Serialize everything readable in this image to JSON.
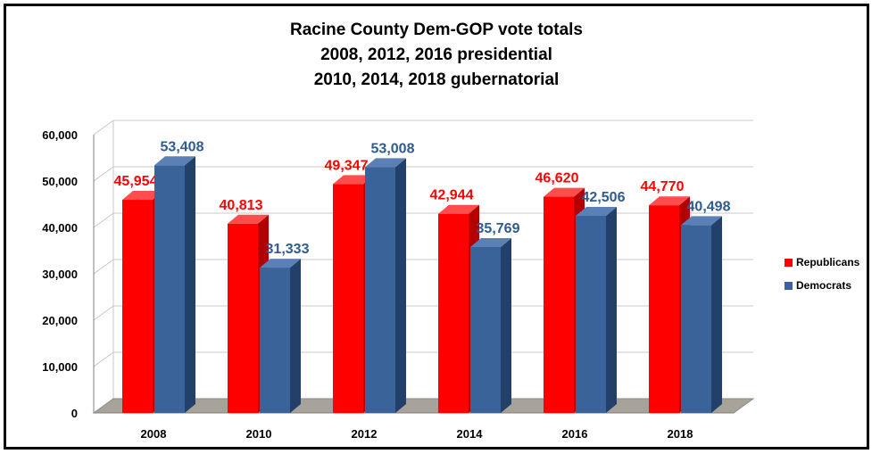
{
  "chart_data": {
    "type": "bar",
    "title_lines": [
      "Racine County Dem-GOP vote totals",
      "2008, 2012, 2016 presidential",
      "2010, 2014, 2018 gubernatorial"
    ],
    "categories": [
      "2008",
      "2010",
      "2012",
      "2014",
      "2016",
      "2018"
    ],
    "series": [
      {
        "name": "Republicans",
        "color": "#ff0000",
        "side_color": "#b30000",
        "top_color": "#ff4d4d",
        "label_color": "#ff0000",
        "values": [
          45954,
          40813,
          49347,
          42944,
          46620,
          44770
        ],
        "labels": [
          "45,954",
          "40,813",
          "49,347",
          "42,944",
          "46,620",
          "44,770"
        ]
      },
      {
        "name": "Democrats",
        "color": "#3a6399",
        "side_color": "#22406a",
        "top_color": "#5a80b5",
        "label_color": "#2e5b92",
        "values": [
          53408,
          31333,
          53008,
          35769,
          42506,
          40498
        ],
        "labels": [
          "53,408",
          "31,333",
          "53,008",
          "35,769",
          "42,506",
          "40,498"
        ]
      }
    ],
    "ylim": [
      0,
      60000
    ],
    "yticks": [
      "0",
      "10,000",
      "20,000",
      "30,000",
      "40,000",
      "50,000",
      "60,000"
    ],
    "grid": true,
    "legend_position": "right"
  }
}
